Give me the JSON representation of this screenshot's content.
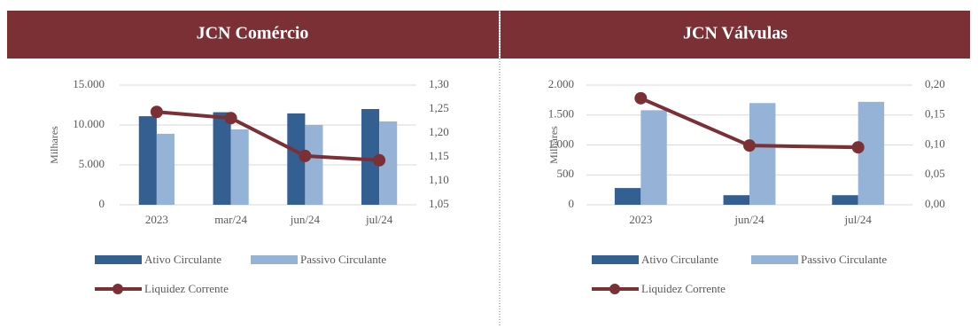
{
  "chart_data": [
    {
      "type": "bar",
      "title": "JCN Comércio",
      "y_label": "Milhares",
      "categories": [
        "2023",
        "mar/24",
        "jun/24",
        "jul/24"
      ],
      "series": [
        {
          "name": "Ativo Circulante",
          "color": "#335f91",
          "values": [
            11100,
            11600,
            11450,
            12000
          ]
        },
        {
          "name": "Passivo Circulante",
          "color": "#95b3d7",
          "values": [
            8900,
            9450,
            10000,
            10450
          ]
        },
        {
          "name": "Liquidez Corrente",
          "color": "#7b3035",
          "axis": "y2",
          "values": [
            1.244,
            1.231,
            1.152,
            1.143
          ]
        }
      ],
      "ylim": [
        0,
        15000
      ],
      "yticks": [
        0,
        {
          "value": 5000,
          "label": "5.000"
        },
        {
          "value": 10000,
          "label": "10.000"
        },
        {
          "value": 15000,
          "label": "15.000"
        }
      ],
      "y2lim": [
        1.05,
        1.3
      ],
      "y2ticks": [
        {
          "value": 1.05,
          "label": "1,05"
        },
        {
          "value": 1.1,
          "label": "1,10"
        },
        {
          "value": 1.15,
          "label": "1,15"
        },
        {
          "value": 1.2,
          "label": "1,20"
        },
        {
          "value": 1.25,
          "label": "1,25"
        },
        {
          "value": 1.3,
          "label": "1,30"
        }
      ],
      "grid": true
    },
    {
      "type": "bar",
      "title": "JCN Válvulas",
      "y_label": "Milhares",
      "categories": [
        "2023",
        "jun/24",
        "jul/24"
      ],
      "series": [
        {
          "name": "Ativo Circulante",
          "color": "#335f91",
          "values": [
            280,
            160,
            160
          ]
        },
        {
          "name": "Passivo Circulante",
          "color": "#95b3d7",
          "values": [
            1580,
            1700,
            1720
          ]
        },
        {
          "name": "Liquidez Corrente",
          "color": "#7b3035",
          "axis": "y2",
          "values": [
            0.178,
            0.099,
            0.096
          ]
        }
      ],
      "ylim": [
        0,
        2000
      ],
      "yticks": [
        0,
        500,
        {
          "value": 1000,
          "label": "1.000"
        },
        {
          "value": 1500,
          "label": "1.500"
        },
        {
          "value": 2000,
          "label": "2.000"
        }
      ],
      "y2lim": [
        0,
        0.2
      ],
      "y2ticks": [
        {
          "value": 0,
          "label": "0,00"
        },
        {
          "value": 0.05,
          "label": "0,05"
        },
        {
          "value": 0.1,
          "label": "0,10"
        },
        {
          "value": 0.15,
          "label": "0,15"
        },
        {
          "value": 0.2,
          "label": "0,20"
        }
      ],
      "grid": true
    }
  ]
}
